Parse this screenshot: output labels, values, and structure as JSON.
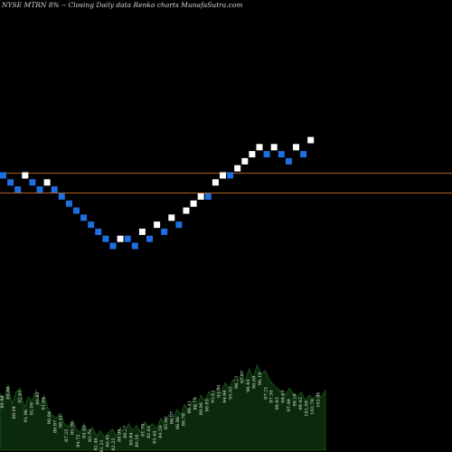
{
  "header": {
    "title": "NYSE MTRN  8% -- Closing Daily data  Renko  charts MunafaSutra.com"
  },
  "chart_data": {
    "type": "renko",
    "colors": {
      "up_brick": "#ffffff",
      "down_brick": "#1f6fe0",
      "reference_line": "#b4601e",
      "volume_fill": "#0b2a0b",
      "volume_stroke": "#1c5a1c",
      "background": "#000000"
    },
    "reference_lines": [
      5.3,
      2.5
    ],
    "bricks": [
      {
        "dir": "down",
        "level": 5
      },
      {
        "dir": "down",
        "level": 4
      },
      {
        "dir": "down",
        "level": 3
      },
      {
        "dir": "up",
        "level": 5
      },
      {
        "dir": "down",
        "level": 4
      },
      {
        "dir": "down",
        "level": 3
      },
      {
        "dir": "up",
        "level": 4
      },
      {
        "dir": "down",
        "level": 3
      },
      {
        "dir": "down",
        "level": 2
      },
      {
        "dir": "down",
        "level": 1
      },
      {
        "dir": "down",
        "level": 0
      },
      {
        "dir": "down",
        "level": -1
      },
      {
        "dir": "down",
        "level": -2
      },
      {
        "dir": "down",
        "level": -3
      },
      {
        "dir": "down",
        "level": -4
      },
      {
        "dir": "down",
        "level": -5
      },
      {
        "dir": "up",
        "level": -4
      },
      {
        "dir": "down",
        "level": -4
      },
      {
        "dir": "down",
        "level": -5
      },
      {
        "dir": "up",
        "level": -3
      },
      {
        "dir": "down",
        "level": -4
      },
      {
        "dir": "up",
        "level": -2
      },
      {
        "dir": "down",
        "level": -3
      },
      {
        "dir": "up",
        "level": -1
      },
      {
        "dir": "down",
        "level": -2
      },
      {
        "dir": "up",
        "level": 0
      },
      {
        "dir": "up",
        "level": 1
      },
      {
        "dir": "up",
        "level": 2
      },
      {
        "dir": "down",
        "level": 2
      },
      {
        "dir": "up",
        "level": 4
      },
      {
        "dir": "up",
        "level": 5
      },
      {
        "dir": "down",
        "level": 5
      },
      {
        "dir": "up",
        "level": 6
      },
      {
        "dir": "up",
        "level": 7
      },
      {
        "dir": "up",
        "level": 8
      },
      {
        "dir": "up",
        "level": 9
      },
      {
        "dir": "down",
        "level": 8
      },
      {
        "dir": "up",
        "level": 9
      },
      {
        "dir": "down",
        "level": 8
      },
      {
        "dir": "down",
        "level": 7
      },
      {
        "dir": "up",
        "level": 9
      },
      {
        "dir": "down",
        "level": 8
      },
      {
        "dir": "up",
        "level": 10
      }
    ],
    "volume_labels": [
      "89.94",
      "89.88",
      "89.04",
      "92.61",
      "91.96",
      "92.09",
      "90.82",
      "91.64",
      "90.84",
      "89.87",
      "88.41",
      "87.25",
      "85.39",
      "84.72",
      "84.45",
      "83.70",
      "82.46",
      "81.21",
      "80.81",
      "82.25",
      "80.98",
      "80.27",
      "80.84",
      "80.56",
      "81.76",
      "82.61",
      "83.44",
      "84.59",
      "85.80",
      "86.07",
      "86.86",
      "86.78",
      "88.41",
      "88.18",
      "89.96",
      "90.85",
      "91.61",
      "93.00",
      "94.96",
      "95.02",
      "96.22",
      "97.07",
      "98.44",
      "96.69",
      "96.19",
      "97.21",
      "97.30",
      "99.83",
      "98.63",
      "97.48",
      "99.18",
      "99.43",
      "101.08",
      "102.78",
      "103.91"
    ],
    "volume": [
      0.64,
      0.58,
      0.74,
      0.52,
      0.66,
      0.7,
      0.48,
      0.6,
      0.56,
      0.68,
      0.5,
      0.62,
      0.46,
      0.4,
      0.36,
      0.42,
      0.3,
      0.26,
      0.34,
      0.24,
      0.2,
      0.3,
      0.18,
      0.26,
      0.16,
      0.22,
      0.14,
      0.2,
      0.24,
      0.16,
      0.26,
      0.18,
      0.3,
      0.22,
      0.28,
      0.2,
      0.32,
      0.26,
      0.3,
      0.24,
      0.36,
      0.3,
      0.4,
      0.34,
      0.46,
      0.4,
      0.52,
      0.44,
      0.58,
      0.5,
      0.62,
      0.56,
      0.66,
      0.6,
      0.7,
      0.64,
      0.76,
      0.7,
      0.8,
      0.74,
      0.86,
      0.78,
      0.92,
      0.82,
      0.96,
      0.86,
      0.9,
      0.8,
      0.74,
      0.7,
      0.66,
      0.62,
      0.7,
      0.64,
      0.6,
      0.66,
      0.56,
      0.62,
      0.58,
      0.64,
      0.6,
      0.68
    ]
  }
}
